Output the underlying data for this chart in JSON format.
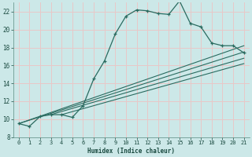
{
  "xlabel": "Humidex (Indice chaleur)",
  "background_color": "#cce8e8",
  "grid_color": "#e8c8c8",
  "line_color": "#2a6b60",
  "xlim": [
    -0.5,
    21.5
  ],
  "ylim": [
    8,
    23
  ],
  "xticks": [
    0,
    1,
    2,
    3,
    4,
    5,
    6,
    7,
    8,
    9,
    10,
    11,
    12,
    13,
    14,
    15,
    16,
    17,
    18,
    19,
    20,
    21
  ],
  "yticks": [
    8,
    10,
    12,
    14,
    16,
    18,
    20,
    22
  ],
  "main_series_x": [
    0,
    1,
    2,
    3,
    4,
    5,
    6,
    7,
    8,
    9,
    10,
    11,
    12,
    13,
    14,
    15,
    16,
    17,
    18,
    19,
    20,
    21
  ],
  "main_series_y": [
    9.5,
    9.2,
    10.3,
    10.5,
    10.5,
    10.2,
    11.5,
    14.5,
    16.5,
    19.5,
    21.5,
    22.2,
    22.1,
    21.8,
    21.7,
    23.2,
    20.7,
    20.3,
    18.5,
    18.2,
    18.2,
    17.4
  ],
  "straight_lines": [
    {
      "x": [
        0,
        21
      ],
      "y": [
        9.5,
        18.2
      ]
    },
    {
      "x": [
        0,
        21
      ],
      "y": [
        9.5,
        17.5
      ]
    },
    {
      "x": [
        3,
        21
      ],
      "y": [
        10.5,
        16.8
      ]
    },
    {
      "x": [
        4,
        21
      ],
      "y": [
        10.5,
        16.2
      ]
    }
  ]
}
